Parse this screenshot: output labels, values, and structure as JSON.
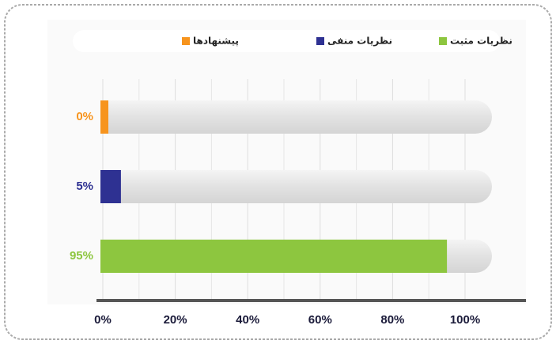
{
  "chart_data": {
    "type": "bar",
    "orientation": "horizontal",
    "series": [
      {
        "name": "پیشنهادها",
        "color": "#f7941d",
        "values": [
          0
        ],
        "value_labels": [
          "0%"
        ]
      },
      {
        "name": "نظریات منفی",
        "color": "#2e3192",
        "values": [
          5
        ],
        "value_labels": [
          "5%"
        ]
      },
      {
        "name": "نظریات مثبت",
        "color": "#8dc63f",
        "values": [
          95
        ],
        "value_labels": [
          "95%"
        ]
      }
    ],
    "xlim": [
      0,
      100
    ],
    "xticks": [
      {
        "value": 0,
        "label": "0%"
      },
      {
        "value": 20,
        "label": "20%"
      },
      {
        "value": 40,
        "label": "40%"
      },
      {
        "value": 60,
        "label": "60%"
      },
      {
        "value": 80,
        "label": "80%"
      },
      {
        "value": 100,
        "label": "100%"
      }
    ],
    "grid": true
  }
}
